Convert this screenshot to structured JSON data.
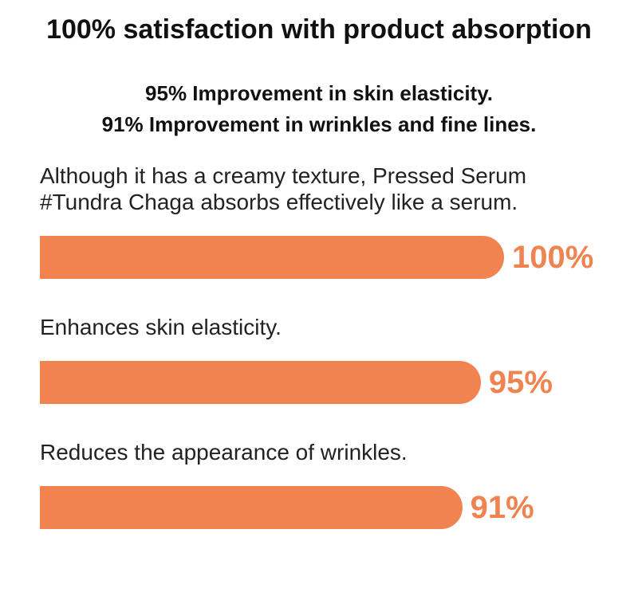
{
  "chart_data": {
    "type": "bar",
    "orientation": "horizontal",
    "title": "100% satisfaction with product absorption",
    "subtitle": [
      "95% Improvement in skin elasticity.",
      "91% Improvement in wrinkles and fine lines."
    ],
    "categories": [
      "Although it has a creamy texture, Pressed Serum #Tundra Chaga absorbs effectively like a serum.",
      "Enhances skin elasticity.",
      "Reduces the appearance of wrinkles."
    ],
    "values": [
      100,
      95,
      91
    ],
    "value_labels": [
      "100%",
      "95%",
      "91%"
    ],
    "color": "#f0834f",
    "xlim": [
      0,
      100
    ]
  }
}
